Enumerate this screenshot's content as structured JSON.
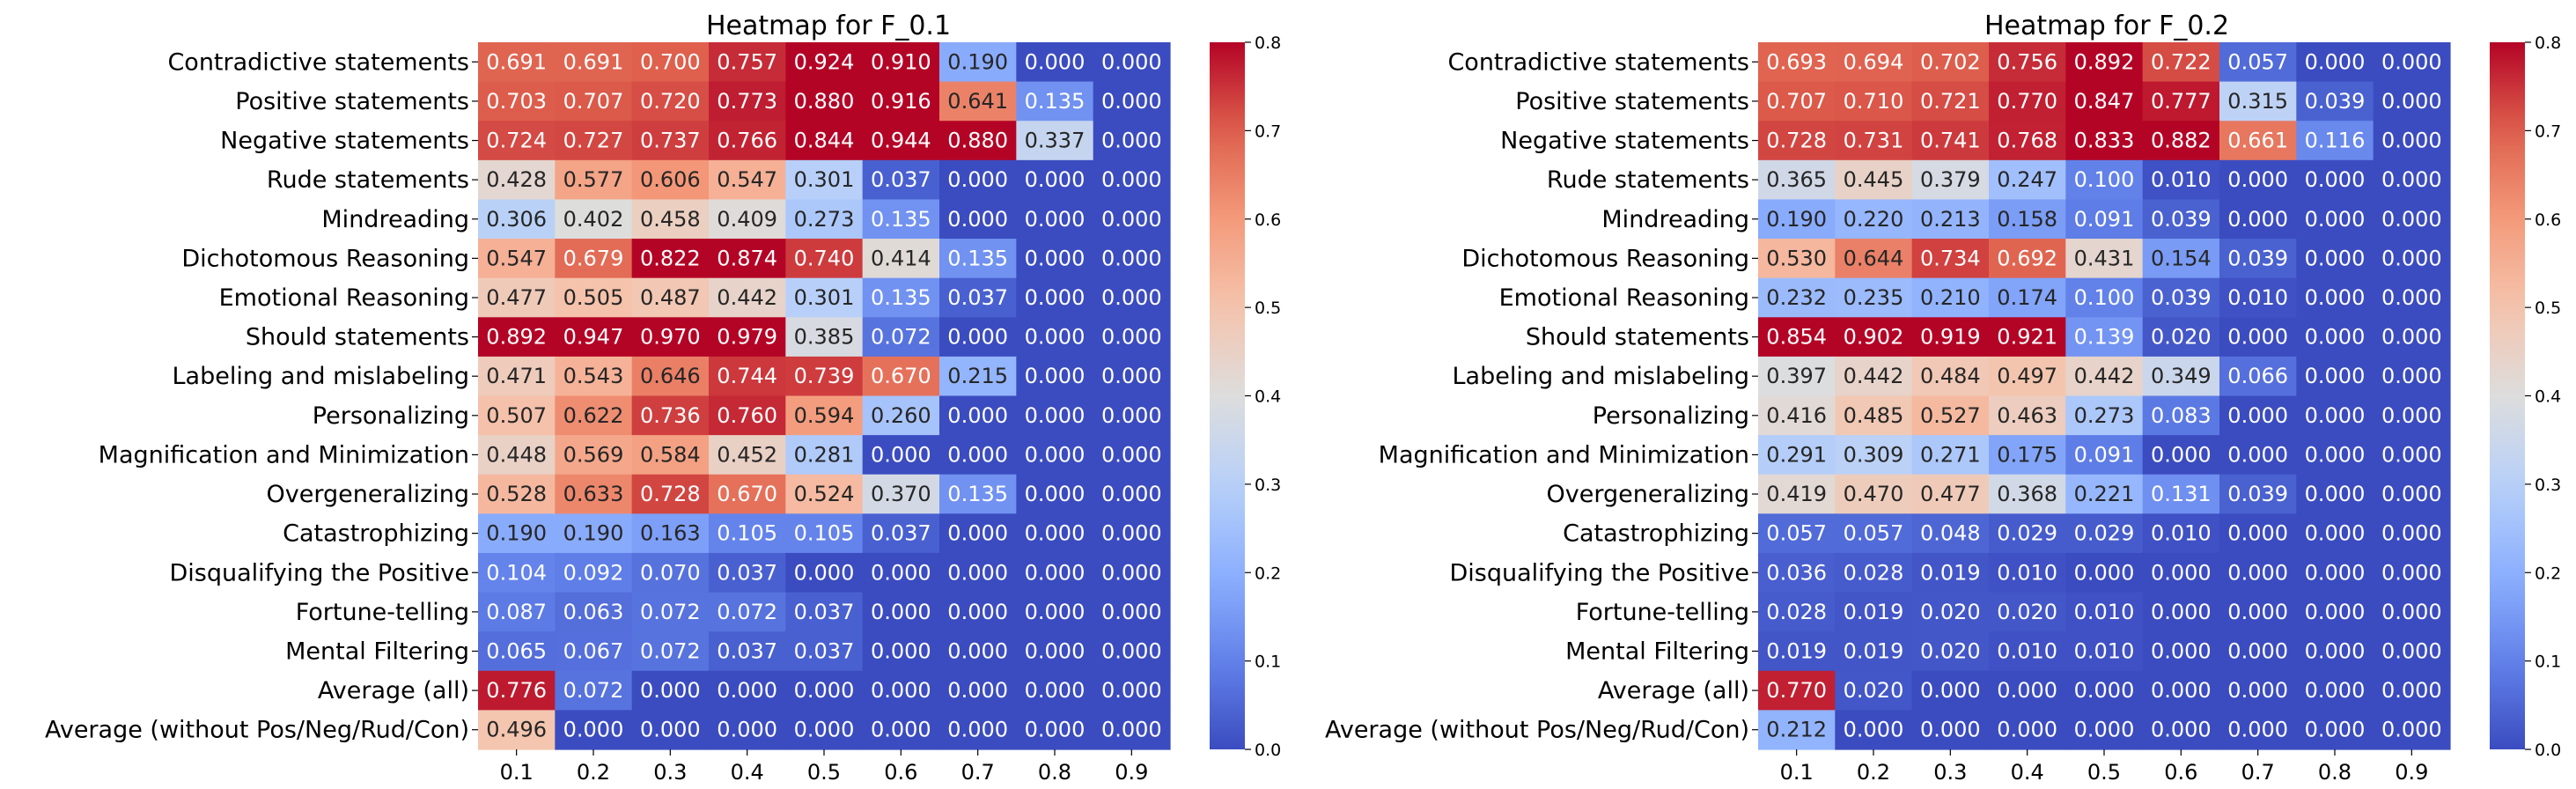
{
  "chart_data": [
    {
      "type": "heatmap",
      "title": "Heatmap for F_0.1",
      "rows": [
        "Contradictive statements",
        "Positive statements",
        "Negative statements",
        "Rude statements",
        "Mindreading",
        "Dichotomous Reasoning",
        "Emotional Reasoning",
        "Should statements",
        "Labeling and mislabeling",
        "Personalizing",
        "Magnification and Minimization",
        "Overgeneralizing",
        "Catastrophizing",
        "Disqualifying the Positive",
        "Fortune-telling",
        "Mental Filtering",
        "Average (all)",
        "Average (without Pos/Neg/Rud/Con)"
      ],
      "columns": [
        "0.1",
        "0.2",
        "0.3",
        "0.4",
        "0.5",
        "0.6",
        "0.7",
        "0.8",
        "0.9"
      ],
      "values": [
        [
          0.691,
          0.691,
          0.7,
          0.757,
          0.924,
          0.91,
          0.19,
          0.0,
          0.0
        ],
        [
          0.703,
          0.707,
          0.72,
          0.773,
          0.88,
          0.916,
          0.641,
          0.135,
          0.0
        ],
        [
          0.724,
          0.727,
          0.737,
          0.766,
          0.844,
          0.944,
          0.88,
          0.337,
          0.0
        ],
        [
          0.428,
          0.577,
          0.606,
          0.547,
          0.301,
          0.037,
          0.0,
          0.0,
          0.0
        ],
        [
          0.306,
          0.402,
          0.458,
          0.409,
          0.273,
          0.135,
          0.0,
          0.0,
          0.0
        ],
        [
          0.547,
          0.679,
          0.822,
          0.874,
          0.74,
          0.414,
          0.135,
          0.0,
          0.0
        ],
        [
          0.477,
          0.505,
          0.487,
          0.442,
          0.301,
          0.135,
          0.037,
          0.0,
          0.0
        ],
        [
          0.892,
          0.947,
          0.97,
          0.979,
          0.385,
          0.072,
          0.0,
          0.0,
          0.0
        ],
        [
          0.471,
          0.543,
          0.646,
          0.744,
          0.739,
          0.67,
          0.215,
          0.0,
          0.0
        ],
        [
          0.507,
          0.622,
          0.736,
          0.76,
          0.594,
          0.26,
          0.0,
          0.0,
          0.0
        ],
        [
          0.448,
          0.569,
          0.584,
          0.452,
          0.281,
          0.0,
          0.0,
          0.0,
          0.0
        ],
        [
          0.528,
          0.633,
          0.728,
          0.67,
          0.524,
          0.37,
          0.135,
          0.0,
          0.0
        ],
        [
          0.19,
          0.19,
          0.163,
          0.105,
          0.105,
          0.037,
          0.0,
          0.0,
          0.0
        ],
        [
          0.104,
          0.092,
          0.07,
          0.037,
          0.0,
          0.0,
          0.0,
          0.0,
          0.0
        ],
        [
          0.087,
          0.063,
          0.072,
          0.072,
          0.037,
          0.0,
          0.0,
          0.0,
          0.0
        ],
        [
          0.065,
          0.067,
          0.072,
          0.037,
          0.037,
          0.0,
          0.0,
          0.0,
          0.0
        ],
        [
          0.776,
          0.072,
          0.0,
          0.0,
          0.0,
          0.0,
          0.0,
          0.0,
          0.0
        ],
        [
          0.496,
          0.0,
          0.0,
          0.0,
          0.0,
          0.0,
          0.0,
          0.0,
          0.0
        ]
      ],
      "colormap": "coolwarm",
      "vmin": 0.0,
      "vmax": 0.8,
      "colorbar_ticks": [
        "0.0",
        "0.1",
        "0.2",
        "0.3",
        "0.4",
        "0.5",
        "0.6",
        "0.7",
        "0.8"
      ]
    },
    {
      "type": "heatmap",
      "title": "Heatmap for F_0.2",
      "rows": [
        "Contradictive statements",
        "Positive statements",
        "Negative statements",
        "Rude statements",
        "Mindreading",
        "Dichotomous Reasoning",
        "Emotional Reasoning",
        "Should statements",
        "Labeling and mislabeling",
        "Personalizing",
        "Magnification and Minimization",
        "Overgeneralizing",
        "Catastrophizing",
        "Disqualifying the Positive",
        "Fortune-telling",
        "Mental Filtering",
        "Average (all)",
        "Average (without Pos/Neg/Rud/Con)"
      ],
      "columns": [
        "0.1",
        "0.2",
        "0.3",
        "0.4",
        "0.5",
        "0.6",
        "0.7",
        "0.8",
        "0.9"
      ],
      "values": [
        [
          0.693,
          0.694,
          0.702,
          0.756,
          0.892,
          0.722,
          0.057,
          0.0,
          0.0
        ],
        [
          0.707,
          0.71,
          0.721,
          0.77,
          0.847,
          0.777,
          0.315,
          0.039,
          0.0
        ],
        [
          0.728,
          0.731,
          0.741,
          0.768,
          0.833,
          0.882,
          0.661,
          0.116,
          0.0
        ],
        [
          0.365,
          0.445,
          0.379,
          0.247,
          0.1,
          0.01,
          0.0,
          0.0,
          0.0
        ],
        [
          0.19,
          0.22,
          0.213,
          0.158,
          0.091,
          0.039,
          0.0,
          0.0,
          0.0
        ],
        [
          0.53,
          0.644,
          0.734,
          0.692,
          0.431,
          0.154,
          0.039,
          0.0,
          0.0
        ],
        [
          0.232,
          0.235,
          0.21,
          0.174,
          0.1,
          0.039,
          0.01,
          0.0,
          0.0
        ],
        [
          0.854,
          0.902,
          0.919,
          0.921,
          0.139,
          0.02,
          0.0,
          0.0,
          0.0
        ],
        [
          0.397,
          0.442,
          0.484,
          0.497,
          0.442,
          0.349,
          0.066,
          0.0,
          0.0
        ],
        [
          0.416,
          0.485,
          0.527,
          0.463,
          0.273,
          0.083,
          0.0,
          0.0,
          0.0
        ],
        [
          0.291,
          0.309,
          0.271,
          0.175,
          0.091,
          0.0,
          0.0,
          0.0,
          0.0
        ],
        [
          0.419,
          0.47,
          0.477,
          0.368,
          0.221,
          0.131,
          0.039,
          0.0,
          0.0
        ],
        [
          0.057,
          0.057,
          0.048,
          0.029,
          0.029,
          0.01,
          0.0,
          0.0,
          0.0
        ],
        [
          0.036,
          0.028,
          0.019,
          0.01,
          0.0,
          0.0,
          0.0,
          0.0,
          0.0
        ],
        [
          0.028,
          0.019,
          0.02,
          0.02,
          0.01,
          0.0,
          0.0,
          0.0,
          0.0
        ],
        [
          0.019,
          0.019,
          0.02,
          0.01,
          0.01,
          0.0,
          0.0,
          0.0,
          0.0
        ],
        [
          0.77,
          0.02,
          0.0,
          0.0,
          0.0,
          0.0,
          0.0,
          0.0,
          0.0
        ],
        [
          0.212,
          0.0,
          0.0,
          0.0,
          0.0,
          0.0,
          0.0,
          0.0,
          0.0
        ]
      ],
      "colormap": "coolwarm",
      "vmin": 0.0,
      "vmax": 0.8,
      "colorbar_ticks": [
        "0.0",
        "0.1",
        "0.2",
        "0.3",
        "0.4",
        "0.5",
        "0.6",
        "0.7",
        "0.8"
      ]
    }
  ]
}
